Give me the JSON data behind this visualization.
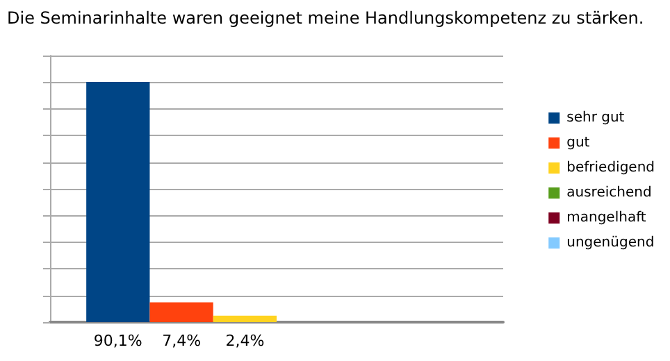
{
  "chart_data": {
    "type": "bar",
    "title": "Die Seminarinhalte waren geeignet meine Handlungskompetenz zu stärken.",
    "categories": [
      null
    ],
    "series": [
      {
        "name": "sehr gut",
        "color": "#004586",
        "values": [
          90.1
        ],
        "value_labels": [
          "90,1%"
        ]
      },
      {
        "name": "gut",
        "color": "#ff420e",
        "values": [
          7.4
        ],
        "value_labels": [
          "7,4%"
        ]
      },
      {
        "name": "befriedigend",
        "color": "#ffd320",
        "values": [
          2.4
        ],
        "value_labels": [
          "2,4%"
        ]
      },
      {
        "name": "ausreichend",
        "color": "#579d1c",
        "values": [
          0
        ],
        "value_labels": [
          null
        ]
      },
      {
        "name": "mangelhaft",
        "color": "#7e0021",
        "values": [
          0
        ],
        "value_labels": [
          null
        ]
      },
      {
        "name": "ungenügend",
        "color": "#83caff",
        "values": [
          0
        ],
        "value_labels": [
          null
        ]
      }
    ],
    "ylim": [
      0,
      100
    ],
    "yticks": [
      {
        "value": 0,
        "label": null
      },
      {
        "value": 10,
        "label": null
      },
      {
        "value": 20,
        "label": null
      },
      {
        "value": 30,
        "label": null
      },
      {
        "value": 40,
        "label": null
      },
      {
        "value": 50,
        "label": null
      },
      {
        "value": 60,
        "label": null
      },
      {
        "value": 70,
        "label": null
      },
      {
        "value": 80,
        "label": null
      },
      {
        "value": 90,
        "label": null
      },
      {
        "value": 100,
        "label": null
      }
    ],
    "grid": "y",
    "legend": "right"
  }
}
